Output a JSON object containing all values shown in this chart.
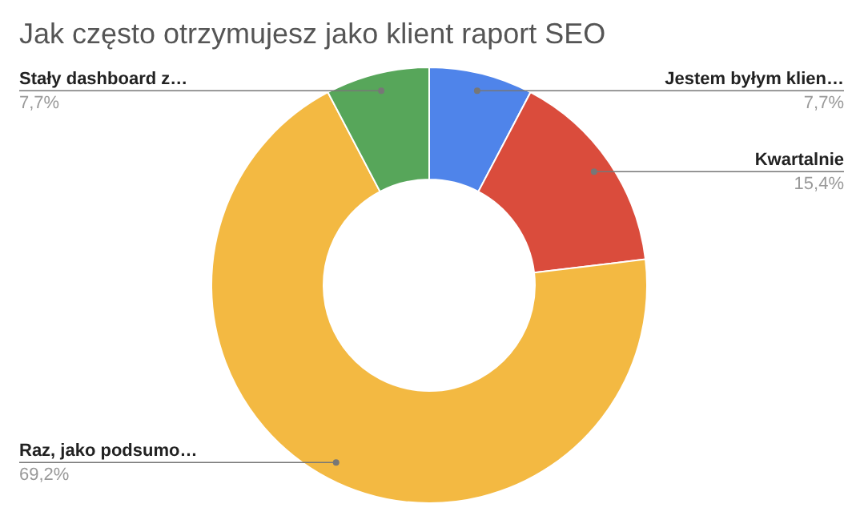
{
  "chart_data": {
    "type": "donut",
    "title": "Jak często otrzymujesz jako klient raport SEO",
    "categories": [
      "Jestem byłym klien…",
      "Kwartalnie",
      "Raz, jako podsumo…",
      "Stały dashboard z…"
    ],
    "values": [
      7.7,
      15.4,
      69.2,
      7.7
    ],
    "value_labels": [
      "7,7%",
      "15,4%",
      "69,2%",
      "7,7%"
    ],
    "colors": [
      "#4f84ea",
      "#da4c3c",
      "#f3b942",
      "#57a65a"
    ]
  }
}
